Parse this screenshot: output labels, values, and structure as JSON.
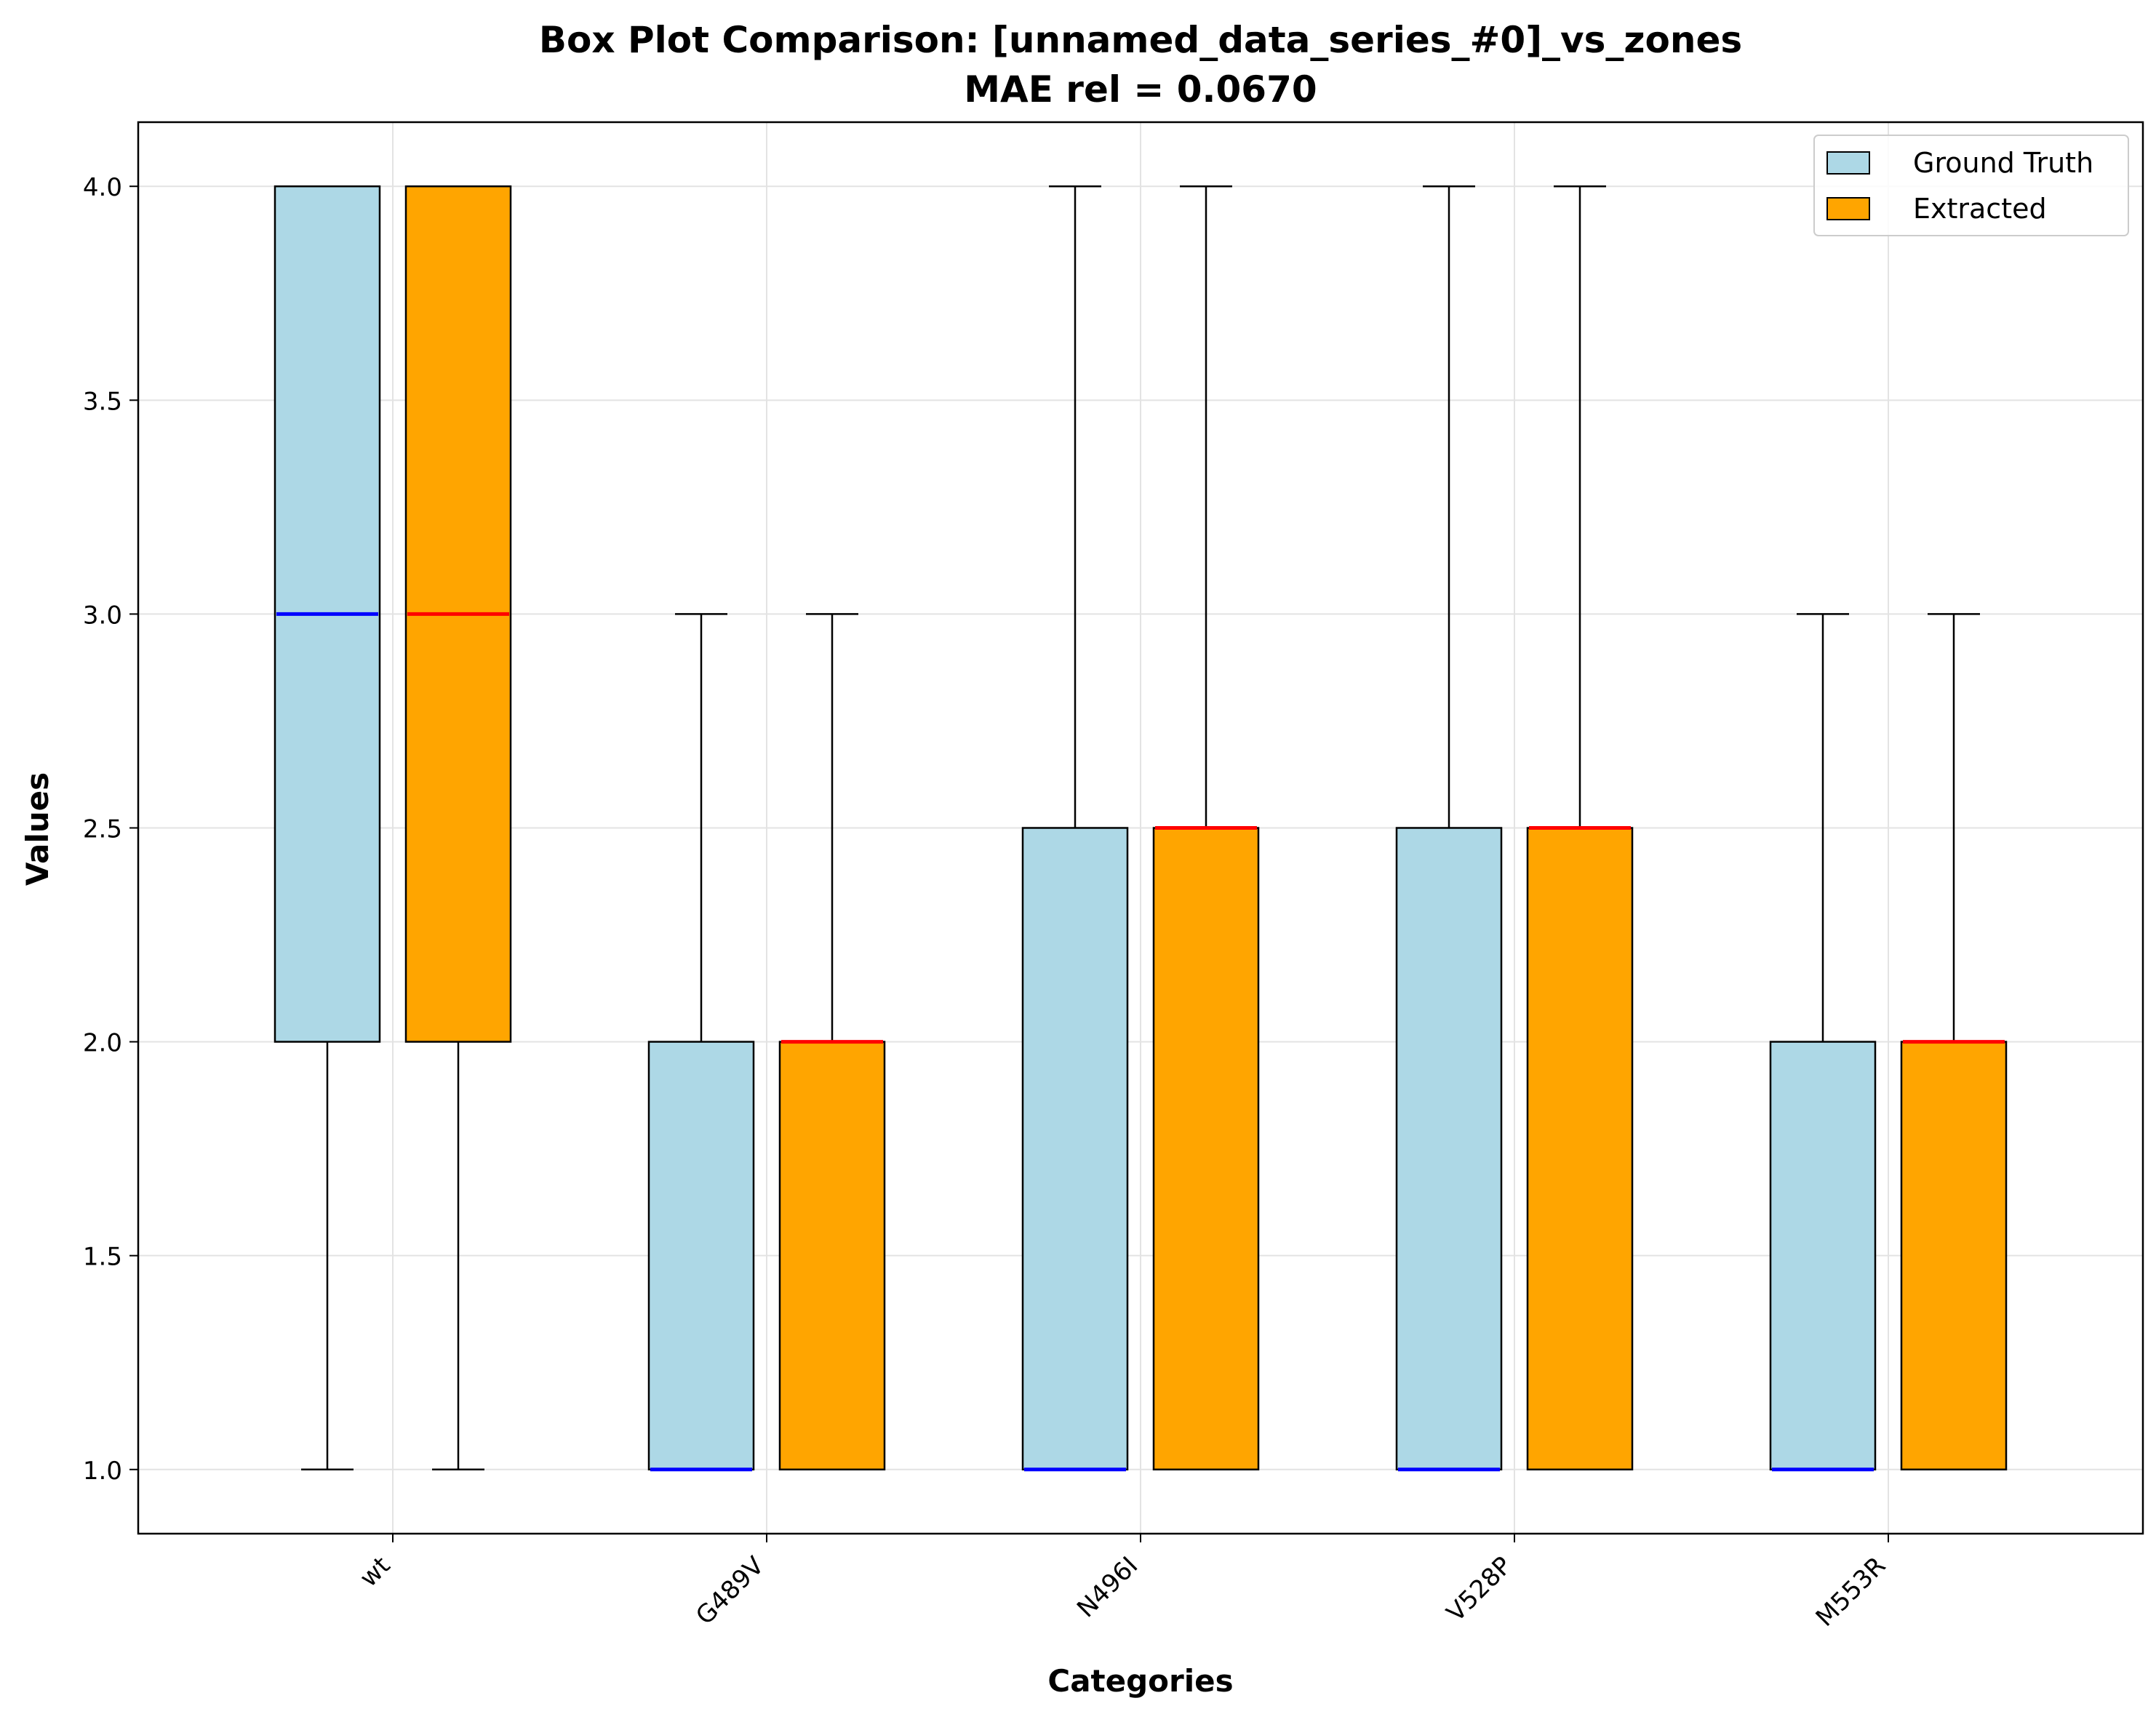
{
  "chart_data": {
    "type": "box",
    "title": "Box Plot Comparison: [unnamed_data_series_#0]_vs_zones",
    "subtitle": "MAE rel = 0.0670",
    "xlabel": "Categories",
    "ylabel": "Values",
    "ylim": [
      0.85,
      4.15
    ],
    "yticks": [
      1.0,
      1.5,
      2.0,
      2.5,
      3.0,
      3.5,
      4.0
    ],
    "ytick_labels": [
      "1.0",
      "1.5",
      "2.0",
      "2.5",
      "3.0",
      "3.5",
      "4.0"
    ],
    "categories": [
      "wt",
      "G489V",
      "N496I",
      "V528P",
      "M553R"
    ],
    "grid": true,
    "legend_position": "top-right",
    "series": [
      {
        "name": "Ground Truth",
        "fill": "#add8e6",
        "median_color": "#0000ff",
        "boxes": [
          {
            "min": 1.0,
            "q1": 2.0,
            "median": 3.0,
            "q3": 4.0,
            "max": 4.0
          },
          {
            "min": 1.0,
            "q1": 1.0,
            "median": 1.0,
            "q3": 2.0,
            "max": 3.0
          },
          {
            "min": 1.0,
            "q1": 1.0,
            "median": 1.0,
            "q3": 2.5,
            "max": 4.0
          },
          {
            "min": 1.0,
            "q1": 1.0,
            "median": 1.0,
            "q3": 2.5,
            "max": 4.0
          },
          {
            "min": 1.0,
            "q1": 1.0,
            "median": 1.0,
            "q3": 2.0,
            "max": 3.0
          }
        ]
      },
      {
        "name": "Extracted",
        "fill": "#ffa500",
        "median_color": "#ff0000",
        "boxes": [
          {
            "min": 1.0,
            "q1": 2.0,
            "median": 3.0,
            "q3": 4.0,
            "max": 4.0
          },
          {
            "min": 1.0,
            "q1": 1.0,
            "median": 2.0,
            "q3": 2.0,
            "max": 3.0
          },
          {
            "min": 1.0,
            "q1": 1.0,
            "median": 2.5,
            "q3": 2.5,
            "max": 4.0
          },
          {
            "min": 1.0,
            "q1": 1.0,
            "median": 2.5,
            "q3": 2.5,
            "max": 4.0
          },
          {
            "min": 1.0,
            "q1": 1.0,
            "median": 2.0,
            "q3": 2.0,
            "max": 3.0
          }
        ]
      }
    ]
  }
}
